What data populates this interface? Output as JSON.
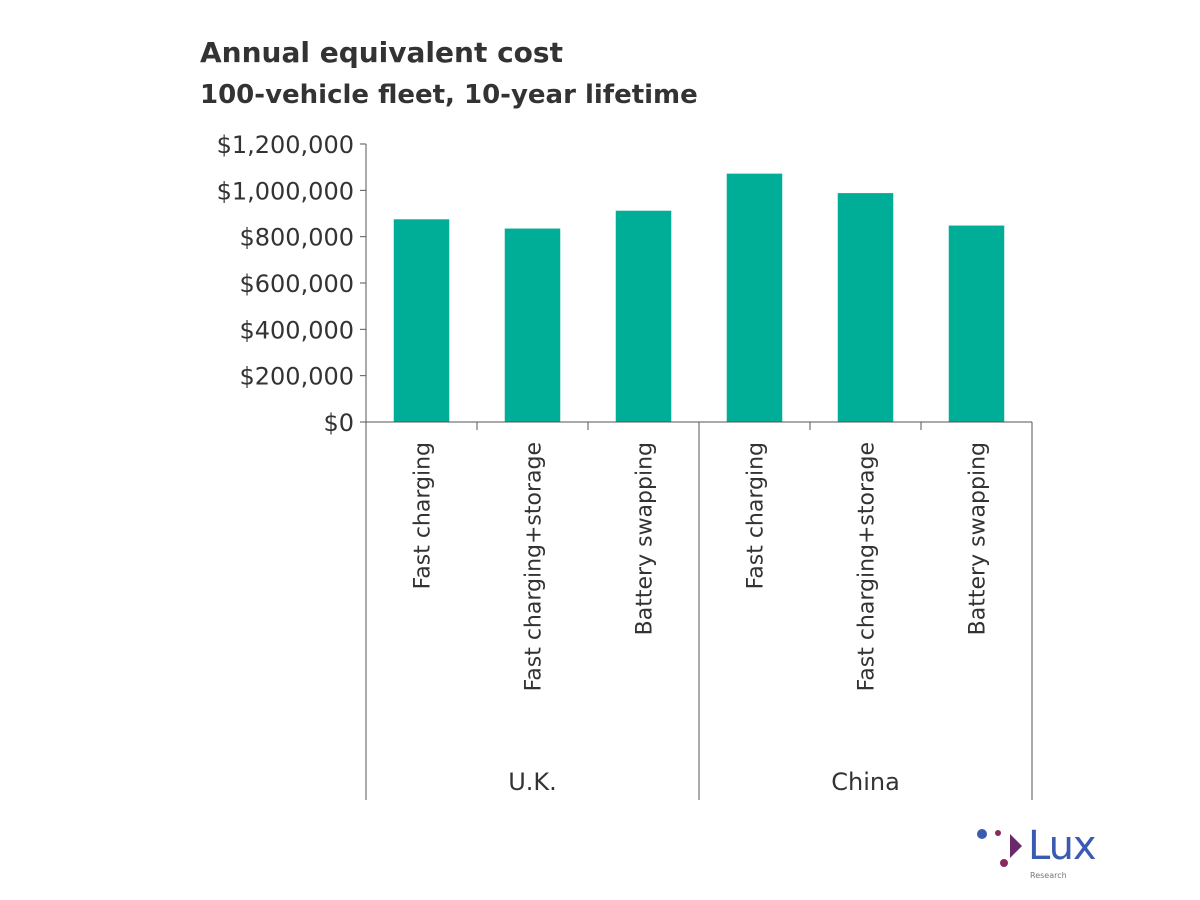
{
  "chart_data": {
    "type": "bar",
    "title": "Annual equivalent cost",
    "subtitle": "100-vehicle fleet, 10-year lifetime",
    "xlabel": "",
    "ylabel": "",
    "ylim": [
      0,
      1200000
    ],
    "yticks": [
      0,
      200000,
      400000,
      600000,
      800000,
      1000000,
      1200000
    ],
    "ytick_labels": [
      "$0",
      "$200,000",
      "$400,000",
      "$600,000",
      "$800,000",
      "$1,000,000",
      "$1,200,000"
    ],
    "groups": [
      {
        "label": "U.K.",
        "categories": [
          "Fast charging",
          "Fast charging+storage",
          "Battery swapping"
        ],
        "values": [
          875000,
          835000,
          912000
        ]
      },
      {
        "label": "China",
        "categories": [
          "Fast charging",
          "Fast charging+storage",
          "Battery swapping"
        ],
        "values": [
          1072000,
          988000,
          848000
        ]
      }
    ],
    "bar_color": "#00ad96",
    "grid": false,
    "legend": "none"
  },
  "logo": {
    "name": "Lux",
    "sub": "Research"
  }
}
